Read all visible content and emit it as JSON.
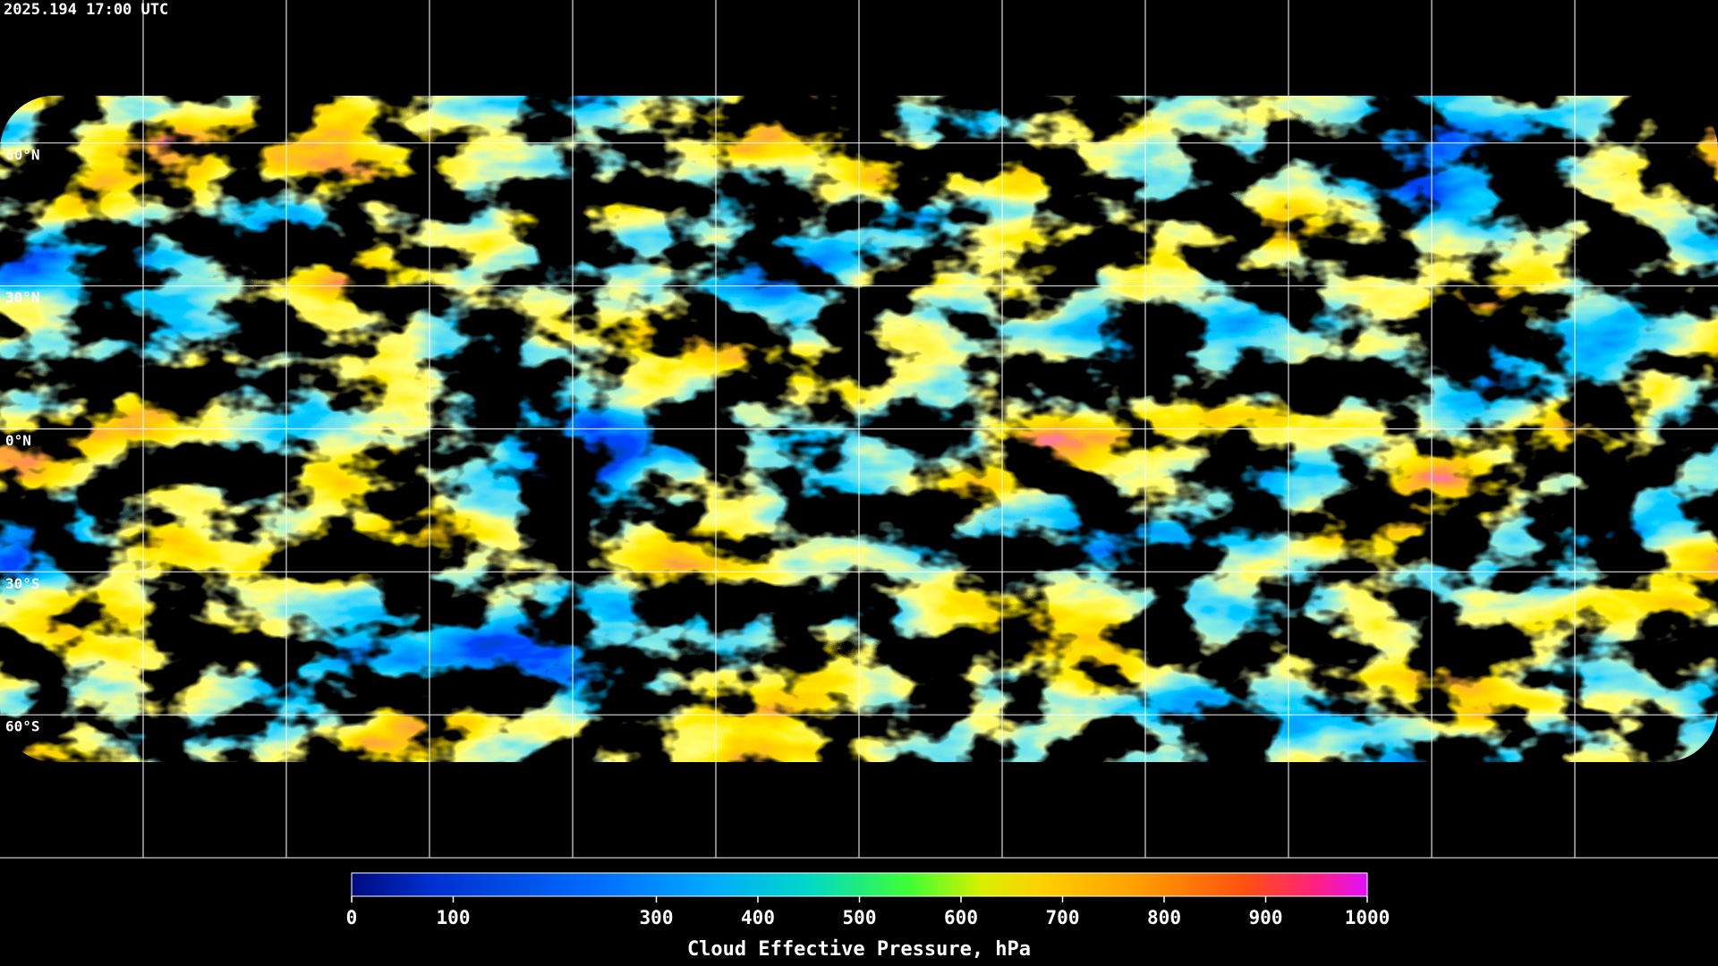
{
  "header": {
    "timestamp": "2025.194 17:00 UTC"
  },
  "map": {
    "lat_lines": [
      {
        "value": 60,
        "label": "60°N"
      },
      {
        "value": 30,
        "label": "30°N"
      },
      {
        "value": 0,
        "label": "0°N"
      },
      {
        "value": -30,
        "label": "30°S"
      },
      {
        "value": -60,
        "label": "60°S"
      }
    ],
    "lon_lines": [
      -150,
      -120,
      -90,
      -60,
      -30,
      0,
      30,
      60,
      90,
      120,
      150
    ]
  },
  "colorbar": {
    "label": "Cloud Effective Pressure, hPa",
    "range": [
      0,
      1000
    ],
    "ticks": [
      0,
      100,
      300,
      400,
      500,
      600,
      700,
      800,
      900,
      1000
    ]
  }
}
